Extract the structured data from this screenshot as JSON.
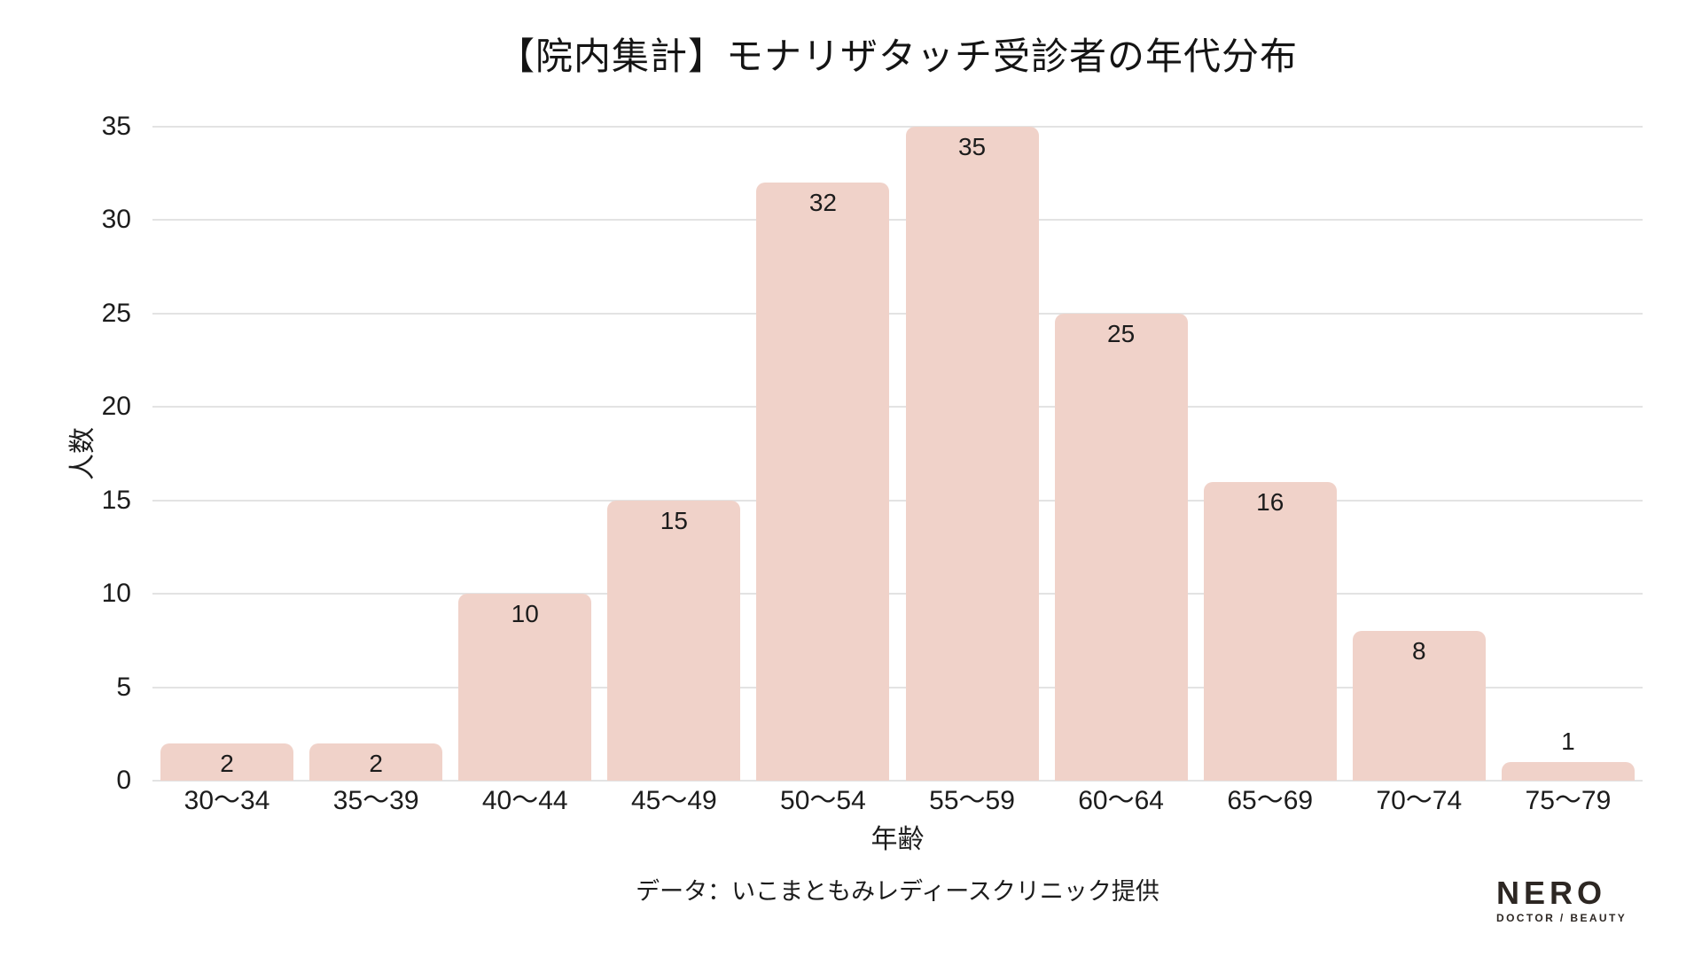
{
  "chart_data": {
    "type": "bar",
    "title": "【院内集計】モナリザタッチ受診者の年代分布",
    "categories": [
      "30〜34",
      "35〜39",
      "40〜44",
      "45〜49",
      "50〜54",
      "55〜59",
      "60〜64",
      "65〜69",
      "70〜74",
      "75〜79"
    ],
    "values": [
      2,
      2,
      10,
      15,
      32,
      35,
      25,
      16,
      8,
      1
    ],
    "xlabel": "年齢",
    "ylabel": "人数",
    "ylim": [
      0,
      35
    ],
    "yticks": [
      0,
      5,
      10,
      15,
      20,
      25,
      30,
      35
    ],
    "grid": true,
    "legend": "none",
    "bar_color": "#f0d2c9",
    "gridline_color": "#e3e3e3",
    "text_color": "#1c1c1c"
  },
  "footer": {
    "source": "データ：いこまともみレディースクリニック提供"
  },
  "logo": {
    "name": "NERO",
    "tagline": "DOCTOR / BEAUTY",
    "color": "#2d2723"
  }
}
